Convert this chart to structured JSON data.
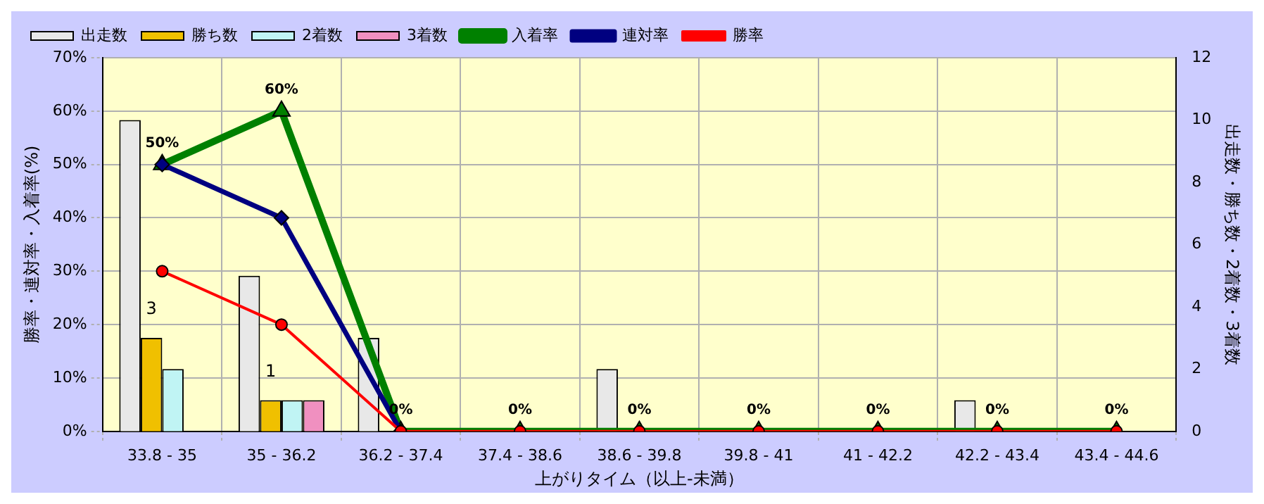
{
  "chart_data": {
    "type": "bar",
    "categories": [
      "33.8 - 35",
      "35 - 36.2",
      "36.2 - 37.4",
      "37.4 - 38.6",
      "38.6 - 39.8",
      "39.8 - 41",
      "41 - 42.2",
      "42.2 - 43.4",
      "43.4 - 44.6"
    ],
    "xlabel": "上がりタイム（以上-未満）",
    "ylabel": "勝率・連対率・入着率(%)",
    "y2label": "出走数・勝ち数・2着数・3着数",
    "series": [
      {
        "name": "出走数",
        "axis": "y2",
        "color": "#e8e8e8",
        "values": [
          10,
          5,
          3,
          0,
          2,
          0,
          0,
          1,
          0
        ]
      },
      {
        "name": "勝ち数",
        "axis": "y2",
        "color": "#f0c000",
        "values": [
          3,
          1,
          0,
          0,
          0,
          0,
          0,
          0,
          0
        ],
        "value_labels": [
          "3",
          "1",
          null,
          null,
          null,
          null,
          null,
          null,
          null
        ]
      },
      {
        "name": "2着数",
        "axis": "y2",
        "color": "#c0f4f4",
        "values": [
          2,
          1,
          0,
          0,
          0,
          0,
          0,
          0,
          0
        ]
      },
      {
        "name": "3着数",
        "axis": "y2",
        "color": "#f090c0",
        "values": [
          0,
          1,
          0,
          0,
          0,
          0,
          0,
          0,
          0
        ]
      },
      {
        "name": "入着率",
        "type": "line",
        "marker": "triangle",
        "color": "#008000",
        "values": [
          50,
          60,
          0,
          0,
          0,
          0,
          0,
          0,
          0
        ],
        "value_labels": [
          "50%",
          "60%",
          null,
          null,
          null,
          null,
          null,
          null,
          null
        ]
      },
      {
        "name": "連対率",
        "type": "line",
        "marker": "diamond",
        "color": "#000080",
        "values": [
          50,
          40,
          0,
          null,
          null,
          null,
          null,
          null,
          null
        ]
      },
      {
        "name": "勝率",
        "type": "line",
        "marker": "circle",
        "color": "#ff0000",
        "values": [
          30,
          20,
          0,
          0,
          0,
          0,
          0,
          0,
          0
        ],
        "value_labels": [
          null,
          null,
          "0%",
          "0%",
          "0%",
          "0%",
          "0%",
          "0%",
          "0%"
        ]
      }
    ],
    "ylim": [
      0,
      70
    ],
    "yticks": [
      {
        "value": 0,
        "label": "0%"
      },
      {
        "value": 10,
        "label": "10%"
      },
      {
        "value": 20,
        "label": "20%"
      },
      {
        "value": 30,
        "label": "30%"
      },
      {
        "value": 40,
        "label": "40%"
      },
      {
        "value": 50,
        "label": "50%"
      },
      {
        "value": 60,
        "label": "60%"
      },
      {
        "value": 70,
        "label": "70%"
      }
    ],
    "y2lim": [
      0,
      12
    ],
    "y2ticks": [
      0,
      2,
      4,
      6,
      8,
      10,
      12
    ],
    "grid": true,
    "legend": "top left",
    "line_style": "solid"
  }
}
